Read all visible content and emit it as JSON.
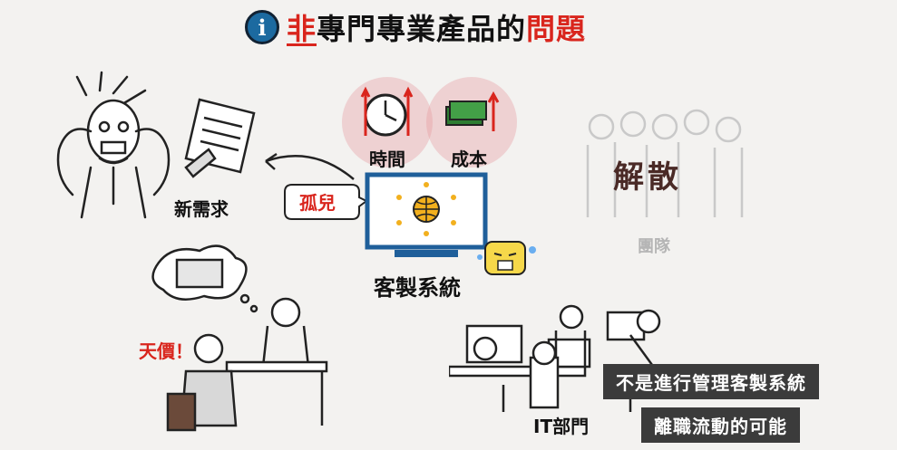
{
  "title": {
    "part_red": "非",
    "part_rest": "專門專業產品的",
    "part_red_end": "問題"
  },
  "labels": {
    "time": "時間",
    "cost": "成本",
    "new_request": "新需求",
    "orphan": "孤兒",
    "custom_system": "客製系統",
    "dissolve": "解散",
    "team": "團隊",
    "sky_price": "天價！",
    "it_department": "IT部門"
  },
  "captions": {
    "line1": "不是進行管理客製系統",
    "line2": "離職流動的可能"
  },
  "colors": {
    "accent_red": "#d9251d",
    "info_blue": "#1c6aa0",
    "monitor_blue": "#1f5f9a",
    "caption_bg": "#3b3b3b"
  }
}
